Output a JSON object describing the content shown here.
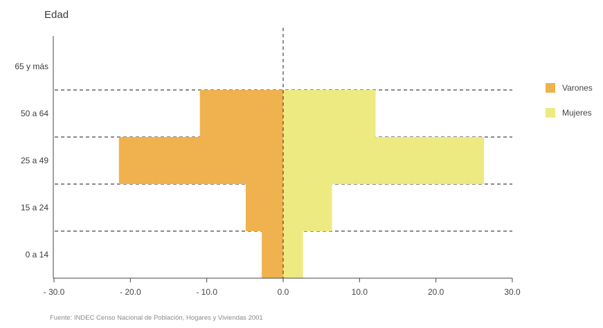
{
  "chart_data": {
    "type": "bar",
    "orientation": "horizontal",
    "title": "",
    "ylabel": "Edad",
    "xlabel": "",
    "categories": [
      "0 a 14",
      "15 a 24",
      "25 a 49",
      "50 a 64",
      "65 y más"
    ],
    "series": [
      {
        "name": "Varones",
        "color": "#f0b24e",
        "values": [
          -2.8,
          -4.9,
          -21.5,
          -10.9,
          0
        ]
      },
      {
        "name": "Mujeres",
        "color": "#eeea82",
        "values": [
          2.6,
          6.4,
          26.3,
          12.1,
          0
        ]
      }
    ],
    "xlim": [
      -30,
      30
    ],
    "xticks": [
      -30,
      -20,
      -10,
      0,
      10,
      20,
      30
    ],
    "xtick_labels": [
      "- 30.0",
      "- 20.0",
      "- 10.0",
      "0.0",
      "10.0",
      "20.0",
      "30.0"
    ],
    "legend_position": "right"
  },
  "source": "Fuente: INDEC Censo Nacional de Población, Hogares y Viviendas 2001"
}
